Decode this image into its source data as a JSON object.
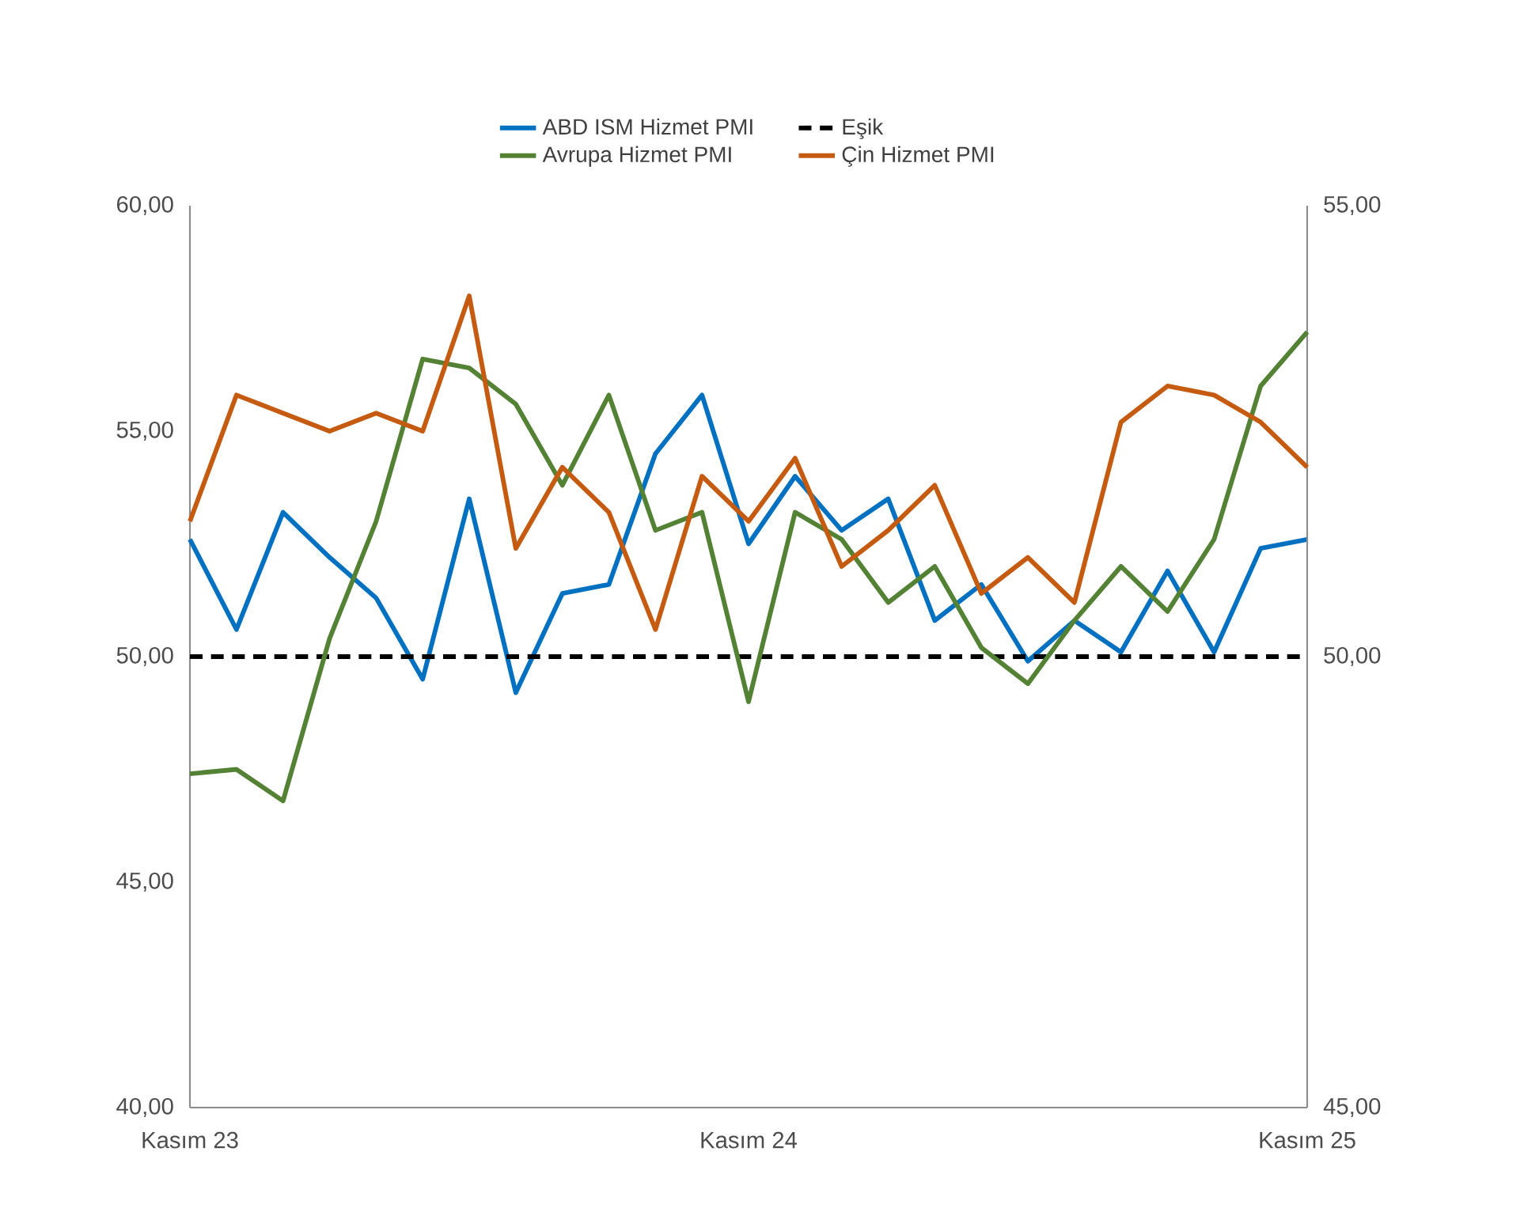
{
  "chart_data": {
    "type": "line",
    "categories": [
      "Kasım 23",
      null,
      null,
      null,
      null,
      null,
      null,
      null,
      null,
      null,
      null,
      null,
      "Kasım 24",
      null,
      null,
      null,
      null,
      null,
      null,
      null,
      null,
      null,
      null,
      null,
      "Kasım 25"
    ],
    "series": [
      {
        "name": "ABD ISM Hizmet PMI",
        "color": "#0070c0",
        "values": [
          52.6,
          50.6,
          53.2,
          52.2,
          51.3,
          49.5,
          53.5,
          49.2,
          51.4,
          51.6,
          54.5,
          55.8,
          52.5,
          54.0,
          52.8,
          53.5,
          50.8,
          51.6,
          49.9,
          50.8,
          50.1,
          51.9,
          50.1,
          52.4,
          52.6
        ]
      },
      {
        "name": "Eşik",
        "color": "#000000",
        "line_style": "dashed",
        "values": [
          50,
          50,
          50,
          50,
          50,
          50,
          50,
          50,
          50,
          50,
          50,
          50,
          50,
          50,
          50,
          50,
          50,
          50,
          50,
          50,
          50,
          50,
          50,
          50,
          50
        ]
      },
      {
        "name": "Avrupa Hizmet PMI",
        "color": "#548235",
        "axis": "y2",
        "values": [
          48.7,
          48.75,
          48.4,
          50.2,
          51.5,
          53.3,
          53.2,
          52.8,
          51.9,
          52.9,
          51.4,
          51.6,
          49.5,
          51.6,
          51.3,
          50.6,
          51.0,
          50.1,
          49.7,
          50.4,
          51.0,
          50.5,
          51.3,
          53.0,
          53.6
        ]
      },
      {
        "name": "Çin Hizmet PMI",
        "color": "#c55a11",
        "axis": "y2",
        "values": [
          51.5,
          52.9,
          52.7,
          52.5,
          52.7,
          52.5,
          54.0,
          51.2,
          52.1,
          51.6,
          50.3,
          52.0,
          51.5,
          52.2,
          51.0,
          51.4,
          51.9,
          50.7,
          51.1,
          50.6,
          52.6,
          53.0,
          52.9,
          52.6,
          52.1
        ]
      }
    ],
    "ylim": [
      40,
      60
    ],
    "yticks": [
      {
        "value": 40,
        "label": "40,00"
      },
      {
        "value": 45,
        "label": "45,00"
      },
      {
        "value": 50,
        "label": "50,00"
      },
      {
        "value": 55,
        "label": "55,00"
      },
      {
        "value": 60,
        "label": "60,00"
      }
    ],
    "y2lim": [
      45,
      55
    ],
    "y2ticks": [
      {
        "value": 45,
        "label": "45,00"
      },
      {
        "value": 50,
        "label": "50,00"
      },
      {
        "value": 55,
        "label": "55,00"
      }
    ],
    "grid": false,
    "legend": "top",
    "marker": "none",
    "line_style": "solid"
  }
}
